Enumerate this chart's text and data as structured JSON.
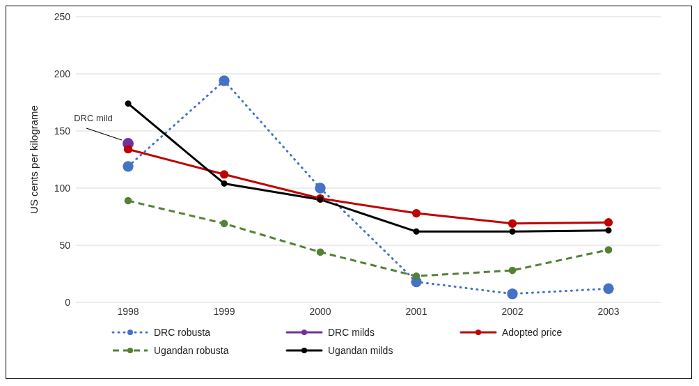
{
  "chart_data": {
    "type": "line",
    "ylabel": "US cents per kilograme",
    "categories": [
      "1998",
      "1999",
      "2000",
      "2001",
      "2002",
      "2003"
    ],
    "series": [
      {
        "name": "DRC robusta",
        "color": "#4472c4",
        "line_style": "dotted",
        "marker": "circle",
        "values": [
          119,
          194,
          100,
          18,
          7.5,
          12
        ]
      },
      {
        "name": "DRC milds",
        "color": "#7030a0",
        "line_style": "solid",
        "marker": "circle",
        "values": [
          139,
          null,
          null,
          null,
          null,
          null
        ]
      },
      {
        "name": "Adopted price",
        "color": "#c00000",
        "line_style": "solid",
        "marker": "circle",
        "values": [
          134,
          112,
          91,
          78,
          69,
          70
        ]
      },
      {
        "name": "Ugandan robusta",
        "color": "#548235",
        "line_style": "dashed",
        "marker": "circle",
        "values": [
          89,
          69,
          44,
          23,
          28,
          46
        ]
      },
      {
        "name": "Ugandan milds",
        "color": "#000000",
        "line_style": "solid",
        "marker": "circle",
        "values": [
          174,
          104,
          90,
          62,
          62,
          63
        ]
      }
    ],
    "ylim": [
      0,
      250
    ],
    "yticks": [
      0,
      50,
      100,
      150,
      200,
      250
    ],
    "grid": "y",
    "legend": "bottom",
    "annotations": [
      {
        "text": "DRC mild",
        "x": "1998",
        "y": 139
      }
    ]
  }
}
